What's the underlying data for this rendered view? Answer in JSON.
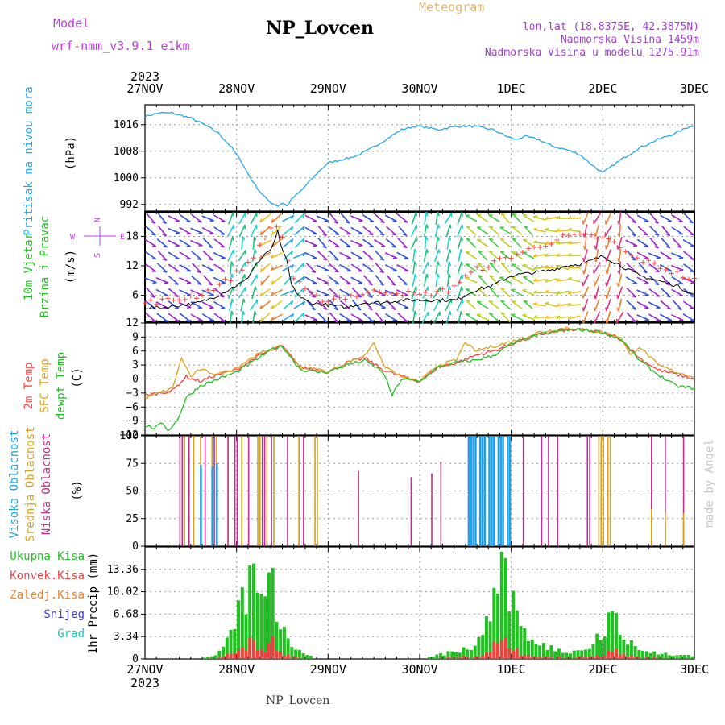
{
  "header": {
    "model_label": "Model",
    "model_name": "wrf-nmm_v3.9.1 e1km",
    "title": "NP_Lovcen",
    "product": "Meteogram",
    "coords": "lon,lat (18.8375E, 42.3875N)",
    "elevation": "Nadmorska Visina 1459m",
    "model_elevation": "Nadmorska Visina u modelu 1275.91m",
    "footer": "NP_Lovcen",
    "credit": "made by Angel",
    "colors": {
      "model": "#c040e0",
      "title": "#000000",
      "product": "#e8b060",
      "info": "#a040d0",
      "credit": "#c8c8c8"
    }
  },
  "time_axis": {
    "year": "2023",
    "labels": [
      "27NOV",
      "28NOV",
      "29NOV",
      "30NOV",
      "1DEC",
      "2DEC",
      "3DEC"
    ]
  },
  "chart_data": [
    {
      "type": "line",
      "panel": "pressure",
      "ylabel": "Pritisak na nivou mora",
      "unit": "(hPa)",
      "yticks": [
        "1016",
        "1008",
        "1000",
        "992"
      ],
      "ylim": [
        990,
        1022
      ],
      "grid": true,
      "series": [
        {
          "color": "#20a8f0",
          "x": [
            0,
            0.15,
            0.3,
            0.5,
            0.65,
            0.8,
            0.95,
            1.05,
            1.15,
            1.25,
            1.35,
            1.45,
            1.5,
            1.55,
            1.6,
            1.7,
            1.8,
            1.9,
            2.0,
            2.15,
            2.3,
            2.45,
            2.6,
            2.8,
            2.95,
            3.0,
            3.2,
            3.4,
            3.6,
            3.8,
            3.95,
            4.05,
            4.15,
            4.3,
            4.45,
            4.6,
            4.75,
            4.9,
            5.0,
            5.05,
            5.2,
            5.4,
            5.6,
            5.8,
            5.95,
            6.0
          ],
          "values": [
            1018.5,
            1019.5,
            1019.5,
            1018,
            1016,
            1013.5,
            1009,
            1005,
            1000,
            996,
            993,
            991.5,
            992.5,
            991.5,
            993.5,
            996,
            999,
            1002,
            1004.5,
            1005.5,
            1006.5,
            1008.5,
            1011,
            1014.5,
            1015.5,
            1015.5,
            1014.5,
            1015.5,
            1015.5,
            1014.5,
            1012.5,
            1011.5,
            1012.5,
            1011.5,
            1009.5,
            1008.5,
            1007,
            1003.5,
            1001.5,
            1002.5,
            1005.5,
            1009,
            1011.5,
            1013.5,
            1015.5,
            1015.5
          ]
        }
      ]
    },
    {
      "type": "line",
      "panel": "wind",
      "ylabel": "10m Vjetar Brzina i Pravac",
      "unit": "(m/s)",
      "compass": [
        "N",
        "E",
        "S",
        "W"
      ],
      "yticks": [
        "18",
        "12",
        "6"
      ],
      "ylim": [
        0.5,
        23
      ],
      "grid": true,
      "series": [
        {
          "name_hint": "speed",
          "color": "#000000",
          "x": [
            0,
            0.2,
            0.4,
            0.6,
            0.8,
            1.0,
            1.1,
            1.2,
            1.3,
            1.4,
            1.45,
            1.5,
            1.55,
            1.6,
            1.7,
            1.8,
            2.0,
            2.2,
            2.4,
            2.6,
            2.8,
            3.0,
            3.2,
            3.4,
            3.5,
            3.6,
            3.8,
            4.0,
            4.2,
            4.4,
            4.6,
            4.8,
            5.0,
            5.1,
            5.2,
            5.3,
            5.4,
            5.6,
            5.8,
            6.0
          ],
          "values": [
            3.5,
            3.5,
            4,
            4.5,
            6,
            8,
            9,
            12,
            14,
            16,
            19,
            15,
            13,
            8,
            5.5,
            4.5,
            4,
            3.5,
            4.5,
            4.5,
            5,
            5,
            5,
            5,
            6,
            7,
            8,
            10,
            10.5,
            11,
            12,
            12.5,
            14,
            13,
            12,
            11,
            10,
            9,
            8,
            6
          ]
        },
        {
          "name_hint": "gust",
          "color": "#ff4040",
          "x": [
            0,
            0.3,
            0.6,
            0.9,
            1.1,
            1.3,
            1.4,
            1.5,
            1.6,
            1.8,
            2.0,
            2.3,
            2.6,
            3.0,
            3.3,
            3.6,
            4.0,
            4.3,
            4.6,
            4.9,
            5.1,
            5.3,
            5.6,
            6.0
          ],
          "values": [
            4.5,
            5,
            6,
            9,
            12,
            17,
            21,
            18,
            10,
            6,
            5,
            6,
            7,
            6,
            7,
            11,
            14,
            16,
            18,
            18,
            17,
            14,
            12,
            9
          ]
        }
      ]
    },
    {
      "type": "line",
      "panel": "temperature",
      "ylabel": [
        "2m Temp",
        "SFC Temp",
        "dewpt Temp"
      ],
      "unit": "(C)",
      "yticks": [
        "12",
        "9",
        "6",
        "3",
        "0",
        "−3",
        "−6",
        "−9",
        "−12"
      ],
      "ylim": [
        -12,
        12
      ],
      "grid": true,
      "series": [
        {
          "name": "2m Temp",
          "color": "#ff4040",
          "x": [
            0,
            0.15,
            0.3,
            0.45,
            0.6,
            0.8,
            1.0,
            1.2,
            1.4,
            1.5,
            1.7,
            1.9,
            2.0,
            2.2,
            2.4,
            2.6,
            2.8,
            3.0,
            3.2,
            3.4,
            3.6,
            3.8,
            4.0,
            4.3,
            4.6,
            4.8,
            5.0,
            5.2,
            5.4,
            5.6,
            5.8,
            6.0
          ],
          "values": [
            -3.5,
            -3,
            -2.5,
            0.5,
            -0.5,
            1,
            2,
            4.5,
            6.5,
            7,
            2.5,
            2,
            1.5,
            3.5,
            4.5,
            2,
            0.5,
            -0.5,
            2.5,
            3.5,
            5,
            6,
            7.5,
            9.5,
            10.5,
            10.5,
            10,
            8.5,
            4.5,
            2,
            1,
            0
          ]
        },
        {
          "name": "SFC Temp",
          "color": "#e0a020",
          "x": [
            0,
            0.15,
            0.3,
            0.4,
            0.5,
            0.6,
            0.8,
            1.0,
            1.2,
            1.4,
            1.5,
            1.7,
            1.9,
            2.0,
            2.2,
            2.4,
            2.5,
            2.6,
            2.8,
            3.0,
            3.2,
            3.4,
            3.5,
            3.6,
            3.8,
            4.0,
            4.3,
            4.6,
            4.8,
            5.0,
            5.2,
            5.3,
            5.4,
            5.6,
            5.8,
            6.0
          ],
          "values": [
            -4,
            -3,
            -2,
            4.5,
            0.5,
            2,
            1,
            2.5,
            5,
            6.5,
            7,
            2.5,
            2,
            1.5,
            3.5,
            5,
            8,
            3,
            0.5,
            -0.5,
            3,
            4,
            8,
            6,
            7,
            8,
            10,
            11,
            10.5,
            10,
            9,
            5,
            7,
            3,
            1.5,
            0.5
          ]
        },
        {
          "name": "dewpt Temp",
          "color": "#20c020",
          "x": [
            0,
            0.1,
            0.2,
            0.25,
            0.35,
            0.45,
            0.6,
            0.8,
            1.0,
            1.2,
            1.4,
            1.5,
            1.7,
            1.9,
            2.0,
            2.2,
            2.4,
            2.6,
            2.7,
            2.8,
            3.0,
            3.2,
            3.4,
            3.6,
            3.8,
            4.0,
            4.3,
            4.6,
            4.8,
            5.0,
            5.2,
            5.4,
            5.6,
            5.8,
            6.0
          ],
          "values": [
            -10,
            -10.5,
            -9.5,
            -11,
            -9,
            -4,
            -1.5,
            0,
            1.5,
            4,
            6.5,
            7,
            2,
            1.5,
            1.5,
            3,
            4,
            1.5,
            -3.5,
            0,
            -0.5,
            2.5,
            3.5,
            4,
            5,
            7.5,
            9.5,
            10.5,
            10.5,
            10,
            8.5,
            4,
            1,
            -1.5,
            -2
          ]
        }
      ]
    },
    {
      "type": "bar",
      "panel": "clouds",
      "ylabel": [
        "Visoka Oblacnost",
        "Srednja Oblacnost",
        "Niska Oblacnost"
      ],
      "unit": "(%)",
      "yticks": [
        "100",
        "75",
        "50",
        "25",
        "0"
      ],
      "ylim": [
        0,
        100
      ],
      "grid": true,
      "series": [
        {
          "name": "Niska Oblacnost",
          "color": "#c03090"
        },
        {
          "name": "Srednja Oblacnost",
          "color": "#d8a020"
        },
        {
          "name": "Visoka Oblacnost",
          "color": "#20a0e8"
        }
      ]
    },
    {
      "type": "bar",
      "panel": "precipitation",
      "ylabel": "1hr Precip (mm)",
      "legend": [
        "Ukupna Kisa",
        "Konvek.Kisa",
        "Zaledj.Kisa",
        "Snijeg",
        "Grad"
      ],
      "legend_colors": [
        "#20c020",
        "#f04040",
        "#f08030",
        "#4040e0",
        "#20c0c0"
      ],
      "yticks": [
        "13.36",
        "10.02",
        "6.68",
        "3.34",
        "0"
      ],
      "ylim": [
        0,
        16.7
      ],
      "grid": true,
      "series": [
        {
          "name": "Ukupna Kisa",
          "color": "#20c020"
        },
        {
          "name": "Konvek.Kisa",
          "color": "#f04040"
        }
      ]
    }
  ]
}
